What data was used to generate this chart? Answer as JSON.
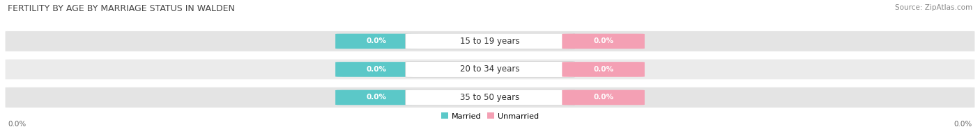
{
  "title": "FERTILITY BY AGE BY MARRIAGE STATUS IN WALDEN",
  "source": "Source: ZipAtlas.com",
  "categories": [
    "15 to 19 years",
    "20 to 34 years",
    "35 to 50 years"
  ],
  "married_values": [
    0.0,
    0.0,
    0.0
  ],
  "unmarried_values": [
    0.0,
    0.0,
    0.0
  ],
  "married_color": "#5bc8c8",
  "unmarried_color": "#f4a0b4",
  "bar_bg_color": "#e4e4e4",
  "bar_bg_color2": "#ebebeb",
  "center_label_bg": "#ffffff",
  "left_label": "0.0%",
  "right_label": "0.0%",
  "legend_married": "Married",
  "legend_unmarried": "Unmarried",
  "title_fontsize": 9,
  "source_fontsize": 7.5,
  "label_fontsize": 7.5,
  "value_fontsize": 7.5,
  "cat_fontsize": 8.5
}
